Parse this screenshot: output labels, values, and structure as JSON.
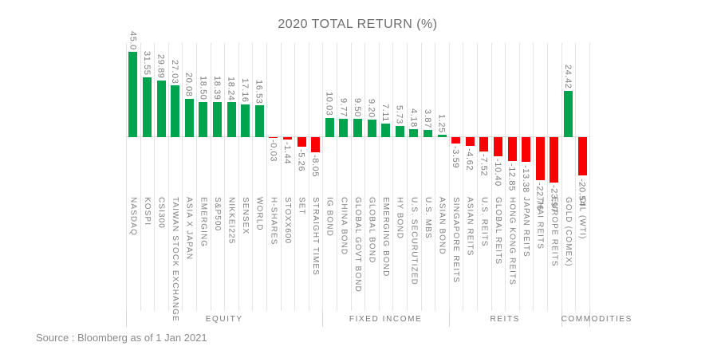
{
  "source_note": "Source : Bloomberg as of 1 Jan 2021",
  "chart_data": {
    "type": "bar",
    "title": "2020 TOTAL RETURN (%)",
    "xlabel": "",
    "ylabel": "",
    "ylim": [
      -25,
      46
    ],
    "grid": "vertical-per-category",
    "legend": "none",
    "value_label_rotation": 90,
    "category_label_rotation": 90,
    "colors": {
      "positive": "#00a44f",
      "negative": "#fb0000",
      "gridline": "#e3e3e3",
      "text": "#7e7e7e"
    },
    "groups": [
      {
        "label": "EQUITY",
        "bars": [
          {
            "name": "NASDAQ",
            "display": "45.0",
            "value": 45.0
          },
          {
            "name": "KOSPI",
            "display": "31.55",
            "value": 31.55
          },
          {
            "name": "CSI300",
            "display": "29.89",
            "value": 29.89
          },
          {
            "name": "TAIWAN STOCK EXCHANGE",
            "display": "27.03",
            "value": 27.03
          },
          {
            "name": "ASIA X JAPAN",
            "display": "20.08",
            "value": 20.08
          },
          {
            "name": "EMERGING",
            "display": "18.50",
            "value": 18.5
          },
          {
            "name": "S&P500",
            "display": "18.39",
            "value": 18.39
          },
          {
            "name": "NIKKEI225",
            "display": "18.24",
            "value": 18.24
          },
          {
            "name": "SENSEX",
            "display": "17.16",
            "value": 17.16
          },
          {
            "name": "WORLD",
            "display": "16.53",
            "value": 16.53
          },
          {
            "name": "H-SHARES",
            "display": "-0.03",
            "value": -0.03
          },
          {
            "name": "STOXX600",
            "display": "-1.44",
            "value": -1.44
          },
          {
            "name": "SET",
            "display": "-5.26",
            "value": -5.26
          },
          {
            "name": "STRAIGHT TIMES",
            "display": "-8.05",
            "value": -8.05
          }
        ]
      },
      {
        "label": "FIXED INCOME",
        "bars": [
          {
            "name": "IG BOND",
            "display": "10.03",
            "value": 10.03
          },
          {
            "name": "CHINA BOND",
            "display": "9.77",
            "value": 9.77
          },
          {
            "name": "GLOBAL GOVT BOND",
            "display": "9.50",
            "value": 9.5
          },
          {
            "name": "GLOBAL BOND",
            "display": "9.20",
            "value": 9.2
          },
          {
            "name": "EMERGING BOND",
            "display": "7.11",
            "value": 7.11
          },
          {
            "name": "HY BOND",
            "display": "5.73",
            "value": 5.73
          },
          {
            "name": "U.S. SECURUTIZED",
            "display": "4.18",
            "value": 4.18
          },
          {
            "name": "U.S. MBS",
            "display": "3.87",
            "value": 3.87
          },
          {
            "name": "ASIAN BOND",
            "display": "1.25",
            "value": 1.25
          }
        ]
      },
      {
        "label": "REITS",
        "bars": [
          {
            "name": "SINGAPORE REITS",
            "display": "-3.59",
            "value": -3.59
          },
          {
            "name": "ASIAN REITS",
            "display": "-4.62",
            "value": -4.62
          },
          {
            "name": "U.S. REITS",
            "display": "-7.52",
            "value": -7.52
          },
          {
            "name": "GLOBAL REITS",
            "display": "-10.40",
            "value": -10.4
          },
          {
            "name": "HONG KONG REITS",
            "display": "-12.85",
            "value": -12.85
          },
          {
            "name": "JAPAN REITS",
            "display": "-13.38",
            "value": -13.38
          },
          {
            "name": "THAI REITS",
            "display": "-22.76",
            "value": -22.76
          },
          {
            "name": "EUROPE REITS",
            "display": "-23.97",
            "value": -23.97
          }
        ]
      },
      {
        "label": "COMMODITIES",
        "bars": [
          {
            "name": "GOLD (COMEX)",
            "display": "24.42",
            "value": 24.42
          },
          {
            "name": "OIL (WTI)",
            "display": "-20.54",
            "value": -20.54
          }
        ]
      }
    ]
  }
}
